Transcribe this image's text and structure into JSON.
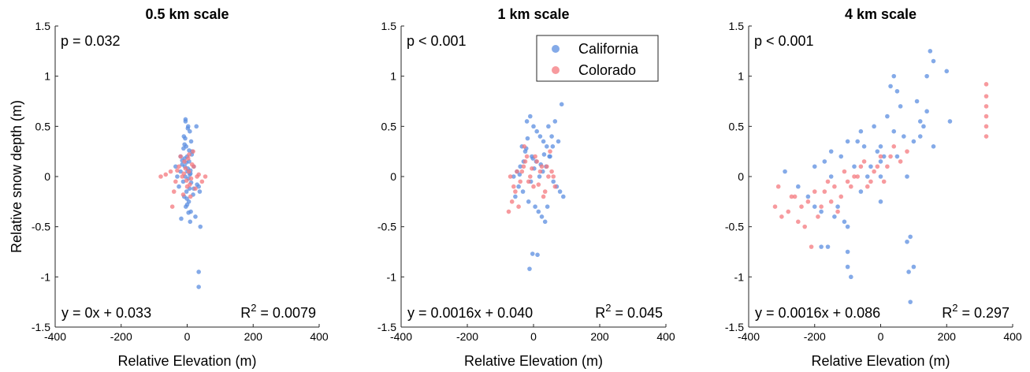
{
  "colors": {
    "California": "#5b8ee0",
    "Colorado": "#f4787d"
  },
  "legend": {
    "items": [
      "California",
      "Colorado"
    ],
    "placement": "top-right of middle panel"
  },
  "chart_data": [
    {
      "type": "scatter",
      "title": "0.5 km scale",
      "xlabel": "Relative Elevation (m)",
      "ylabel": "Relative snow depth (m)",
      "xlim": [
        -400,
        400
      ],
      "ylim": [
        -1.5,
        1.5
      ],
      "xticks": [
        "-400",
        "-200",
        "0",
        "200",
        "400"
      ],
      "yticks": [
        "1.5",
        "1",
        "0.5",
        "0",
        "-0.5",
        "-1",
        "-1.5"
      ],
      "p_text": "p = 0.032",
      "eq_text": "y = 0x + 0.033",
      "r2": {
        "base": "R",
        "sup": "2",
        "value": " = 0.0079"
      },
      "series": [
        {
          "name": "California",
          "x": [
            -5,
            3,
            8,
            -10,
            12,
            -3,
            15,
            0,
            -8,
            6,
            -15,
            20,
            2,
            -20,
            10,
            -6,
            4,
            -12,
            30,
            -25,
            7,
            -2,
            18,
            -9,
            5,
            -4,
            11,
            25,
            -18,
            9,
            1,
            -7,
            14,
            -11,
            28,
            35,
            -30,
            38,
            -35,
            40,
            35,
            35,
            -5,
            2,
            -8,
            6,
            -3,
            10,
            -1,
            0,
            4,
            -6,
            8,
            12,
            -15,
            20,
            -20
          ],
          "y": [
            0.55,
            0.5,
            0.45,
            0.4,
            0.35,
            0.3,
            0.25,
            0.2,
            0.18,
            0.15,
            0.12,
            0.1,
            0.08,
            0.05,
            0.03,
            0.0,
            -0.02,
            -0.05,
            -0.08,
            -0.1,
            -0.12,
            -0.15,
            -0.18,
            -0.2,
            -0.25,
            -0.3,
            -0.35,
            -0.4,
            -0.42,
            -0.45,
            0.05,
            0.1,
            0.22,
            0.28,
            0.5,
            -0.1,
            0.0,
            -0.15,
            0.1,
            -0.5,
            -0.95,
            -1.1,
            0.57,
            0.48,
            0.32,
            0.26,
            0.14,
            0.06,
            -0.22,
            -0.28,
            -0.36,
            0.38,
            0.02,
            -0.06,
            0.16,
            -0.12,
            0.2
          ]
        },
        {
          "name": "Colorado",
          "x": [
            -80,
            -65,
            -50,
            -35,
            -25,
            -15,
            -8,
            0,
            5,
            12,
            20,
            30,
            45,
            55,
            -40,
            -20,
            -5,
            8,
            15,
            25,
            -10,
            3,
            10,
            -30,
            35,
            -45,
            18,
            -2,
            6,
            -12
          ],
          "y": [
            0.0,
            0.02,
            0.05,
            -0.05,
            0.1,
            0.0,
            0.15,
            -0.1,
            0.05,
            -0.02,
            0.1,
            0.0,
            -0.05,
            0.0,
            -0.15,
            0.2,
            0.08,
            -0.08,
            0.12,
            -0.12,
            0.03,
            0.18,
            -0.2,
            0.06,
            0.02,
            -0.3,
            0.25,
            -0.04,
            0.22,
            -0.18
          ]
        }
      ]
    },
    {
      "type": "scatter",
      "title": "1 km scale",
      "xlabel": "Relative Elevation (m)",
      "ylabel": "",
      "xlim": [
        -400,
        400
      ],
      "ylim": [
        -1.5,
        1.5
      ],
      "xticks": [
        "-400",
        "-200",
        "0",
        "200",
        "400"
      ],
      "yticks": [
        "1.5",
        "1",
        "0.5",
        "0",
        "-0.5",
        "-1",
        "-1.5"
      ],
      "p_text": "p < 0.001",
      "eq_text": "y = 0.0016x + 0.040",
      "r2": {
        "base": "R",
        "sup": "2",
        "value": " = 0.045"
      },
      "series": [
        {
          "name": "California",
          "x": [
            -20,
            -10,
            0,
            10,
            20,
            30,
            40,
            50,
            -30,
            -40,
            -50,
            -60,
            60,
            70,
            80,
            90,
            -15,
            5,
            15,
            25,
            35,
            -25,
            -5,
            45,
            55,
            -35,
            -45,
            65,
            75,
            -55,
            -3,
            12,
            -12,
            28,
            38,
            -22,
            8,
            18,
            -8,
            48,
            -18,
            22,
            2,
            -2,
            32,
            -32,
            42,
            58,
            -42,
            85
          ],
          "y": [
            0.55,
            0.6,
            0.5,
            0.45,
            0.4,
            0.35,
            0.3,
            0.2,
            0.15,
            0.1,
            0.05,
            0.0,
            -0.05,
            -0.1,
            -0.15,
            -0.2,
            -0.25,
            -0.3,
            -0.35,
            -0.4,
            -0.45,
            0.25,
            0.2,
            0.5,
            0.4,
            0.3,
            -0.1,
            0.55,
            0.35,
            -0.2,
            -0.77,
            -0.78,
            -0.92,
            0.05,
            0.1,
            0.28,
            0.15,
            0.0,
            -0.05,
            0.2,
            0.38,
            0.12,
            0.08,
            0.18,
            0.22,
            -0.15,
            -0.3,
            0.3,
            0.02,
            0.72
          ]
        },
        {
          "name": "Colorado",
          "x": [
            -70,
            -60,
            -50,
            -40,
            -30,
            -20,
            -10,
            0,
            10,
            20,
            30,
            40,
            50,
            60,
            -55,
            -45,
            -35,
            -25,
            -15,
            -5,
            5,
            15,
            25,
            35,
            45,
            -65,
            55,
            -75,
            65,
            -28
          ],
          "y": [
            0.0,
            -0.1,
            0.05,
            -0.05,
            0.1,
            0.2,
            0.0,
            -0.1,
            0.15,
            0.05,
            -0.2,
            0.1,
            0.25,
            0.0,
            -0.15,
            -0.3,
            0.05,
            0.15,
            -0.05,
            0.08,
            0.2,
            -0.08,
            0.1,
            -0.15,
            0.0,
            -0.25,
            0.05,
            -0.35,
            -0.1,
            0.3
          ]
        }
      ]
    },
    {
      "type": "scatter",
      "title": "4 km scale",
      "xlabel": "Relative Elevation (m)",
      "ylabel": "",
      "xlim": [
        -400,
        400
      ],
      "ylim": [
        -1.5,
        1.5
      ],
      "xticks": [
        "-400",
        "-200",
        "0",
        "200",
        "400"
      ],
      "yticks": [
        "1.5",
        "1",
        "0.5",
        "0",
        "-0.5",
        "-1",
        "-1.5"
      ],
      "p_text": "p < 0.001",
      "eq_text": "y = 0.0016x + 0.086",
      "r2": {
        "base": "R",
        "sup": "2",
        "value": " = 0.297"
      },
      "series": [
        {
          "name": "California",
          "x": [
            -290,
            -250,
            -220,
            -200,
            -180,
            -160,
            -150,
            -140,
            -120,
            -100,
            -100,
            -90,
            -80,
            -60,
            -50,
            -40,
            -20,
            0,
            0,
            20,
            30,
            40,
            50,
            60,
            80,
            90,
            100,
            120,
            140,
            150,
            160,
            200,
            210,
            -100,
            -100,
            0,
            0,
            50,
            100,
            140,
            160,
            -180,
            -150,
            -60,
            40,
            80,
            85,
            90,
            120,
            -130,
            -170,
            -110,
            -70,
            -30,
            10,
            70,
            110,
            130,
            -200,
            -10
          ],
          "y": [
            0.05,
            -0.1,
            -0.2,
            -0.3,
            -0.35,
            -0.7,
            0.0,
            -0.4,
            0.2,
            0.35,
            -0.9,
            -1.0,
            0.1,
            0.45,
            0.3,
            0.0,
            0.5,
            0.0,
            0.3,
            0.6,
            0.9,
            1.0,
            0.2,
            0.7,
            0.0,
            -0.6,
            -0.9,
            0.4,
            1.0,
            1.25,
            1.15,
            1.05,
            0.55,
            -0.5,
            -0.75,
            0.15,
            -0.25,
            0.85,
            0.35,
            0.65,
            0.3,
            -0.7,
            0.25,
            -0.15,
            0.45,
            -0.65,
            -0.95,
            -1.25,
            0.55,
            -0.3,
            0.15,
            -0.45,
            0.35,
            0.1,
            0.2,
            0.4,
            0.75,
            0.5,
            0.1,
            0.25
          ]
        },
        {
          "name": "Colorado",
          "x": [
            -320,
            -300,
            -280,
            -260,
            -240,
            -220,
            -200,
            -180,
            -160,
            -140,
            -120,
            -100,
            -80,
            -60,
            -40,
            -20,
            0,
            20,
            40,
            60,
            80,
            -250,
            -230,
            -210,
            -190,
            -170,
            -150,
            -130,
            -110,
            -90,
            -70,
            -50,
            -30,
            -10,
            320,
            320,
            320,
            320,
            320,
            320,
            10,
            30,
            -310,
            -270
          ],
          "y": [
            -0.3,
            -0.4,
            -0.35,
            -0.2,
            -0.3,
            -0.25,
            -0.15,
            -0.3,
            -0.05,
            -0.1,
            -0.2,
            -0.05,
            0.0,
            0.1,
            -0.1,
            0.05,
            0.2,
            0.1,
            0.3,
            0.15,
            0.25,
            -0.45,
            -0.5,
            -0.7,
            -0.4,
            -0.15,
            -0.25,
            -0.35,
            0.05,
            -0.1,
            0.0,
            0.15,
            -0.05,
            0.1,
            0.4,
            0.5,
            0.6,
            0.7,
            0.8,
            0.92,
            -0.05,
            0.2,
            -0.1,
            -0.2
          ]
        }
      ]
    }
  ]
}
